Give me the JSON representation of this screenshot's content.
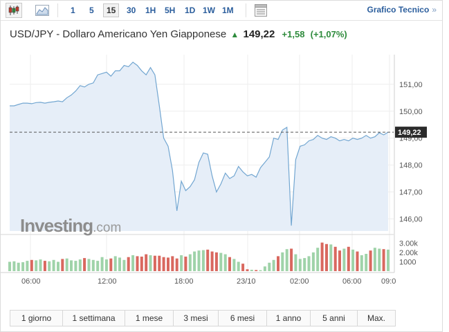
{
  "toolbar": {
    "intervals": [
      {
        "label": "1",
        "active": false
      },
      {
        "label": "5",
        "active": false
      },
      {
        "label": "15",
        "active": true
      },
      {
        "label": "30",
        "active": false
      },
      {
        "label": "1H",
        "active": false
      },
      {
        "label": "5H",
        "active": false
      },
      {
        "label": "1D",
        "active": false
      },
      {
        "label": "1W",
        "active": false
      },
      {
        "label": "1M",
        "active": false
      }
    ],
    "technical_link": "Grafico Tecnico",
    "technical_chevron": "»"
  },
  "header": {
    "title": "USD/JPY - Dollaro Americano Yen Giapponese",
    "arrow": "▲",
    "price": "149,22",
    "change": "+1,58",
    "change_pct": "(+1,07%)"
  },
  "logo": {
    "brand": "Investing",
    "suffix": ".com"
  },
  "chart_data": {
    "type": "area",
    "price_series": [
      150.2,
      150.2,
      150.25,
      150.3,
      150.3,
      150.28,
      150.32,
      150.33,
      150.3,
      150.33,
      150.35,
      150.38,
      150.35,
      150.5,
      150.6,
      150.75,
      150.95,
      150.9,
      151.0,
      151.05,
      151.35,
      151.4,
      151.45,
      151.3,
      151.5,
      151.5,
      151.7,
      151.65,
      151.82,
      151.7,
      151.5,
      151.35,
      151.62,
      151.35,
      150.2,
      149.0,
      148.7,
      147.8,
      146.3,
      147.4,
      147.05,
      147.2,
      147.45,
      148.1,
      148.45,
      148.4,
      147.6,
      147.0,
      147.3,
      147.7,
      147.5,
      147.6,
      147.95,
      147.75,
      147.6,
      147.65,
      147.55,
      147.9,
      148.1,
      148.3,
      149.0,
      148.95,
      149.3,
      149.4,
      145.75,
      148.2,
      148.7,
      148.75,
      148.9,
      148.95,
      149.1,
      149.0,
      148.95,
      149.05,
      149.0,
      148.9,
      148.95,
      148.9,
      149.0,
      148.95,
      149.0,
      149.1,
      149.0,
      149.05,
      149.2,
      149.12,
      149.22
    ],
    "volume_series": [
      1000,
      1050,
      900,
      950,
      1100,
      1200,
      1150,
      1250,
      1100,
      1050,
      1200,
      1000,
      1300,
      1350,
      1150,
      1100,
      1250,
      1400,
      1300,
      1200,
      1100,
      1500,
      1250,
      1350,
      1600,
      1450,
      1200,
      1500,
      1700,
      1600,
      1550,
      1800,
      1700,
      1650,
      1650,
      1500,
      1450,
      1600,
      1350,
      1700,
      1550,
      1800,
      2100,
      2200,
      2250,
      2300,
      2100,
      2000,
      1950,
      1800,
      1500,
      1300,
      1000,
      800,
      200,
      150,
      120,
      100,
      500,
      900,
      1200,
      1600,
      2000,
      2350,
      2400,
      1800,
      1300,
      1400,
      1600,
      2000,
      2500,
      3050,
      2900,
      2850,
      2600,
      2200,
      2400,
      2600,
      2300,
      2100,
      1700,
      1850,
      2200,
      2500,
      2400,
      2350,
      2300
    ],
    "volume_colors": "mixed red/green bars",
    "last_price_label": "149,22",
    "y_ticks": [
      "151,00",
      "150,00",
      "149,00",
      "148,00",
      "147,00",
      "146,00"
    ],
    "y_tick_values": [
      151,
      150,
      149,
      148,
      147,
      146
    ],
    "ylim": [
      145.55,
      152.1
    ],
    "volume_ticks": [
      "3.00k",
      "2.00k",
      "1000"
    ],
    "volume_tick_values": [
      3000,
      2000,
      1000
    ],
    "volume_max": 3400,
    "x_ticks": [
      "06:00",
      "12:00",
      "18:00",
      "23/10",
      "02:00",
      "06:00",
      "09:0"
    ],
    "area_color": "#e6eef8",
    "line_color": "#72a6d1",
    "up_color": "#9fd3a9",
    "down_color": "#d9685f",
    "grid": true
  },
  "ranges": [
    "1 giorno",
    "1 settimana",
    "1 mese",
    "3 mesi",
    "6 mesi",
    "1 anno",
    "5 anni",
    "Max."
  ]
}
